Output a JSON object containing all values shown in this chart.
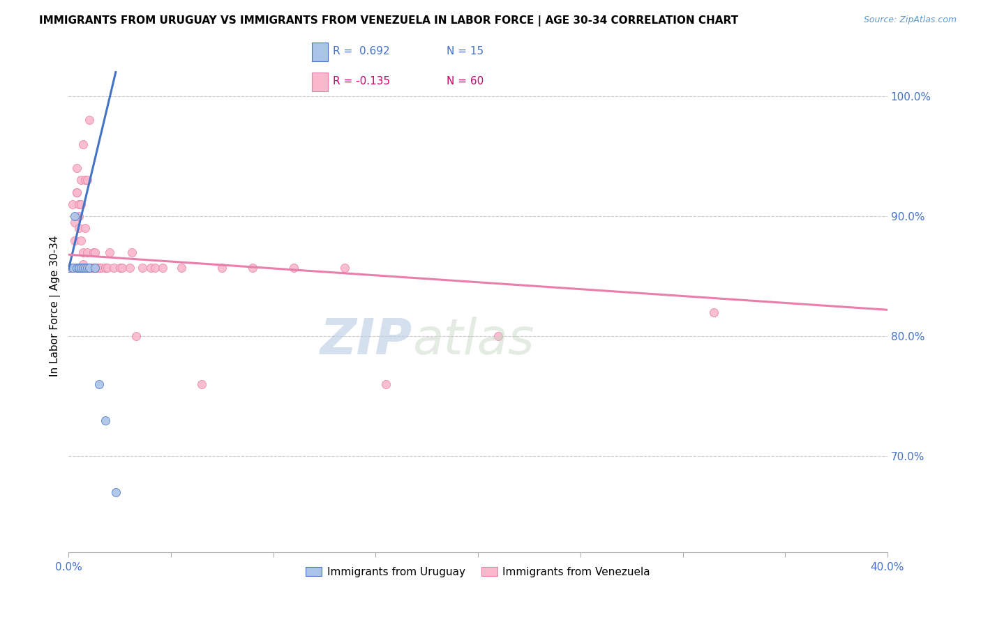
{
  "title": "IMMIGRANTS FROM URUGUAY VS IMMIGRANTS FROM VENEZUELA IN LABOR FORCE | AGE 30-34 CORRELATION CHART",
  "source": "Source: ZipAtlas.com",
  "ylabel": "In Labor Force | Age 30-34",
  "xlim": [
    0.0,
    0.4
  ],
  "ylim": [
    0.62,
    1.03
  ],
  "xticks": [
    0.0,
    0.05,
    0.1,
    0.15,
    0.2,
    0.25,
    0.3,
    0.35,
    0.4
  ],
  "yticks_right": [
    0.7,
    0.8,
    0.9,
    1.0
  ],
  "ytick_right_labels": [
    "70.0%",
    "80.0%",
    "90.0%",
    "100.0%"
  ],
  "color_uruguay": "#aac4e8",
  "color_venezuela": "#f9b8cb",
  "color_uruguay_line": "#4472c4",
  "color_venezuela_line": "#e87eaa",
  "watermark_color": "#ccd9ef",
  "uruguay_x": [
    0.0,
    0.002,
    0.003,
    0.004,
    0.005,
    0.005,
    0.006,
    0.007,
    0.008,
    0.009,
    0.01,
    0.013,
    0.015,
    0.018,
    0.023
  ],
  "uruguay_y": [
    0.857,
    0.857,
    0.9,
    0.857,
    0.857,
    0.857,
    0.857,
    0.857,
    0.857,
    0.857,
    0.857,
    0.857,
    0.76,
    0.73,
    0.67
  ],
  "venezuela_x": [
    0.0,
    0.0,
    0.0,
    0.001,
    0.001,
    0.002,
    0.002,
    0.003,
    0.003,
    0.003,
    0.004,
    0.004,
    0.004,
    0.005,
    0.005,
    0.005,
    0.006,
    0.006,
    0.006,
    0.007,
    0.007,
    0.007,
    0.008,
    0.008,
    0.009,
    0.009,
    0.01,
    0.01,
    0.011,
    0.011,
    0.012,
    0.012,
    0.013,
    0.013,
    0.014,
    0.015,
    0.016,
    0.018,
    0.018,
    0.019,
    0.02,
    0.022,
    0.025,
    0.026,
    0.03,
    0.031,
    0.033,
    0.036,
    0.04,
    0.042,
    0.046,
    0.055,
    0.065,
    0.075,
    0.09,
    0.11,
    0.135,
    0.155,
    0.21,
    0.315
  ],
  "venezuela_y": [
    0.857,
    0.857,
    0.857,
    0.857,
    0.857,
    0.91,
    0.857,
    0.895,
    0.88,
    0.857,
    0.94,
    0.92,
    0.92,
    0.91,
    0.9,
    0.89,
    0.93,
    0.91,
    0.88,
    0.96,
    0.87,
    0.86,
    0.93,
    0.89,
    0.93,
    0.87,
    0.98,
    0.857,
    0.857,
    0.857,
    0.87,
    0.857,
    0.87,
    0.857,
    0.857,
    0.857,
    0.857,
    0.857,
    0.857,
    0.857,
    0.87,
    0.857,
    0.857,
    0.857,
    0.857,
    0.87,
    0.8,
    0.857,
    0.857,
    0.857,
    0.857,
    0.857,
    0.76,
    0.857,
    0.857,
    0.857,
    0.857,
    0.76,
    0.8,
    0.82
  ],
  "uru_line_x0": 0.0,
  "uru_line_x1": 0.023,
  "uru_line_y0": 0.856,
  "uru_line_y1": 1.02,
  "ven_line_x0": 0.0,
  "ven_line_x1": 0.4,
  "ven_line_y0": 0.868,
  "ven_line_y1": 0.822
}
